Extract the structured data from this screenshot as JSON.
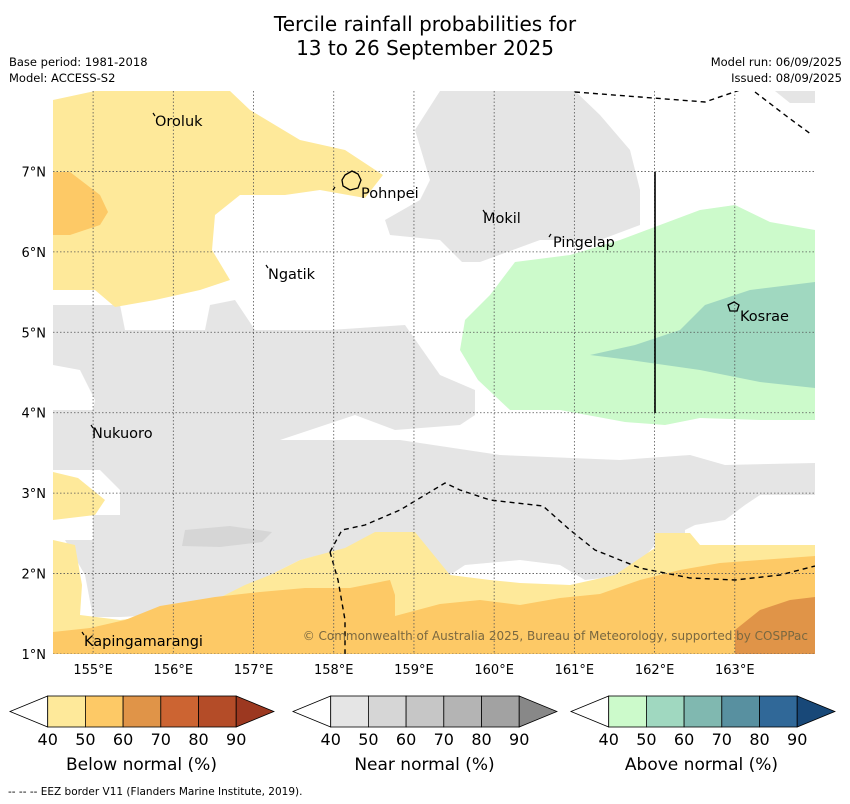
{
  "title": {
    "line1": "Tercile rainfall probabilities for",
    "line2": "13 to 26 September 2025"
  },
  "meta": {
    "base_period": "Base period: 1981-2018",
    "model": "Model: ACCESS-S2",
    "model_run": "Model run: 06/09/2025",
    "issued": "Issued: 08/09/2025"
  },
  "map": {
    "lon_range": [
      154.5,
      164.0
    ],
    "lat_range": [
      1.0,
      8.0
    ],
    "lon_ticks": [
      "155°E",
      "156°E",
      "157°E",
      "158°E",
      "159°E",
      "160°E",
      "161°E",
      "162°E",
      "163°E"
    ],
    "lat_ticks": [
      "1°N",
      "2°N",
      "3°N",
      "4°N",
      "5°N",
      "6°N",
      "7°N"
    ],
    "places": [
      {
        "name": "Oroluk"
      },
      {
        "name": "Pohnpei"
      },
      {
        "name": "Mokil"
      },
      {
        "name": "Pingelap"
      },
      {
        "name": "Ngatik"
      },
      {
        "name": "Kosrae"
      },
      {
        "name": "Nukuoro"
      },
      {
        "name": "Kapingamarangi"
      }
    ],
    "copyright": "© Commonwealth of Australia 2025, Bureau of Meteorology, supported by COSPPac",
    "grid": true
  },
  "colorbars": [
    {
      "label": "Below normal (%)",
      "ticks": [
        "40",
        "50",
        "60",
        "70",
        "80",
        "90"
      ],
      "colors": [
        "#ffffff",
        "#fee99a",
        "#fdc966",
        "#e09448",
        "#cc6432",
        "#b44c28",
        "#9c3820"
      ]
    },
    {
      "label": "Near normal (%)",
      "ticks": [
        "40",
        "50",
        "60",
        "70",
        "80",
        "90"
      ],
      "colors": [
        "#ffffff",
        "#e5e5e5",
        "#d6d6d6",
        "#c6c6c6",
        "#b4b4b4",
        "#a2a2a2",
        "#888888"
      ]
    },
    {
      "label": "Above normal (%)",
      "ticks": [
        "40",
        "50",
        "60",
        "70",
        "80",
        "90"
      ],
      "colors": [
        "#ffffff",
        "#ccfacb",
        "#a0d8c0",
        "#80b8b0",
        "#5890a0",
        "#306898",
        "#184878"
      ]
    }
  ],
  "footer": "--  --  -- EEZ border V11 (Flanders Marine Institute, 2019)."
}
